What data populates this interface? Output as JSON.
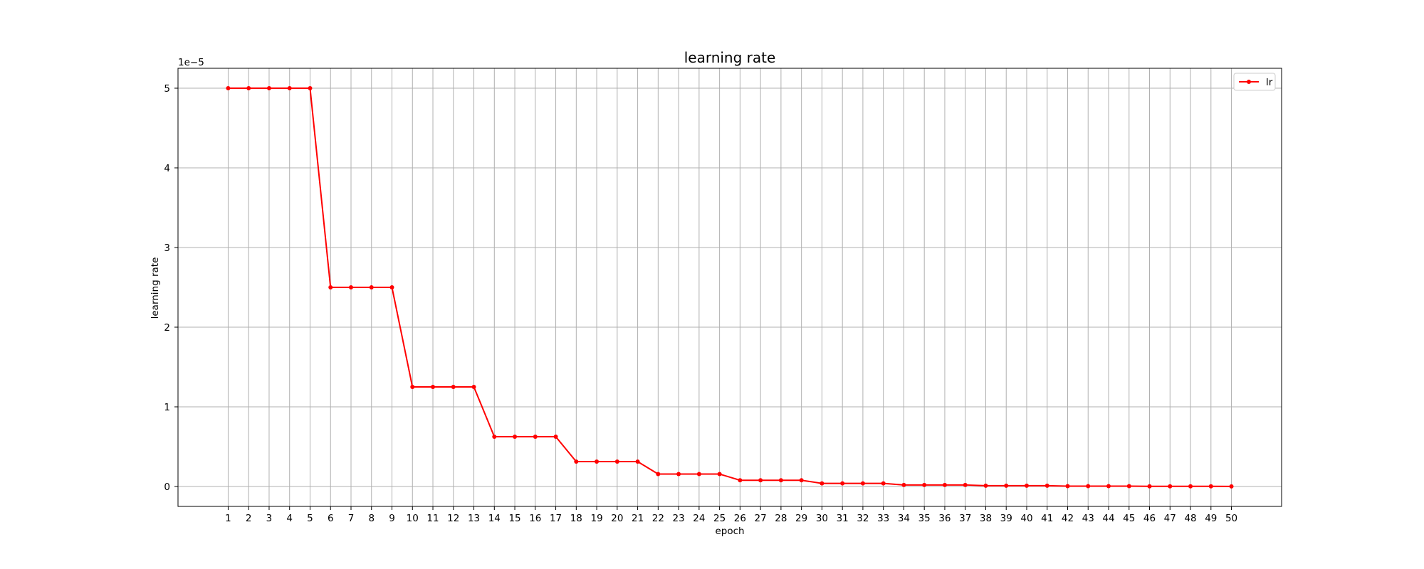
{
  "chart_data": {
    "type": "line",
    "title": "learning rate",
    "xlabel": "epoch",
    "ylabel": "learning rate",
    "y_offset_text": "1e−5",
    "x": [
      1,
      2,
      3,
      4,
      5,
      6,
      7,
      8,
      9,
      10,
      11,
      12,
      13,
      14,
      15,
      16,
      17,
      18,
      19,
      20,
      21,
      22,
      23,
      24,
      25,
      26,
      27,
      28,
      29,
      30,
      31,
      32,
      33,
      34,
      35,
      36,
      37,
      38,
      39,
      40,
      41,
      42,
      43,
      44,
      45,
      46,
      47,
      48,
      49,
      50
    ],
    "xticks": [
      "1",
      "2",
      "3",
      "4",
      "5",
      "6",
      "7",
      "8",
      "9",
      "10",
      "11",
      "12",
      "13",
      "14",
      "15",
      "16",
      "17",
      "18",
      "19",
      "20",
      "21",
      "22",
      "23",
      "24",
      "25",
      "26",
      "27",
      "28",
      "29",
      "30",
      "31",
      "32",
      "33",
      "34",
      "35",
      "36",
      "37",
      "38",
      "39",
      "40",
      "41",
      "42",
      "43",
      "44",
      "45",
      "46",
      "47",
      "48",
      "49",
      "50"
    ],
    "yticks": [
      0,
      1,
      2,
      3,
      4,
      5
    ],
    "xlim": [
      -1.45,
      52.45
    ],
    "ylim": [
      -0.25,
      5.25
    ],
    "grid": true,
    "legend_position": "top-right",
    "series": [
      {
        "name": "lr",
        "color": "#ff0000",
        "marker": "dot",
        "values": [
          5,
          5,
          5,
          5,
          5,
          2.5,
          2.5,
          2.5,
          2.5,
          1.25,
          1.25,
          1.25,
          1.25,
          0.625,
          0.625,
          0.625,
          0.625,
          0.3125,
          0.3125,
          0.3125,
          0.3125,
          0.15625,
          0.15625,
          0.15625,
          0.15625,
          0.078125,
          0.078125,
          0.078125,
          0.078125,
          0.0390625,
          0.0390625,
          0.0390625,
          0.0390625,
          0.01953125,
          0.01953125,
          0.01953125,
          0.01953125,
          0.009765625,
          0.009765625,
          0.009765625,
          0.009765625,
          0.0048828125,
          0.0048828125,
          0.0048828125,
          0.0048828125,
          0.00244140625,
          0.00244140625,
          0.00244140625,
          0.00244140625,
          0.001220703125
        ]
      }
    ]
  }
}
